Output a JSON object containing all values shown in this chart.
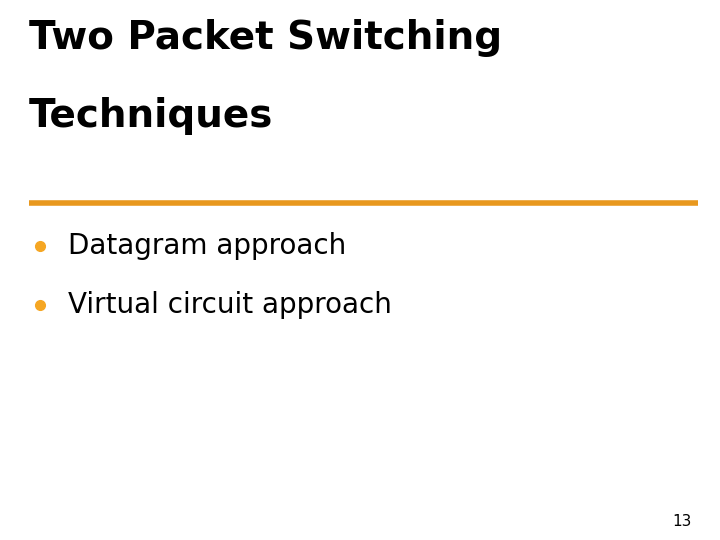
{
  "title_line1": "Two Packet Switching",
  "title_line2": "Techniques",
  "title_color": "#000000",
  "title_fontsize": 28,
  "title_fontweight": "bold",
  "title_fontfamily": "DejaVu Sans",
  "divider_color": "#E8981E",
  "divider_linewidth": 4,
  "bullet_color": "#F5A623",
  "bullet_items": [
    "Datagram approach",
    "Virtual circuit approach"
  ],
  "bullet_fontsize": 20,
  "bullet_fontfamily": "DejaVu Sans",
  "bullet_text_color": "#000000",
  "page_number": "13",
  "page_number_fontsize": 11,
  "background_color": "#ffffff"
}
